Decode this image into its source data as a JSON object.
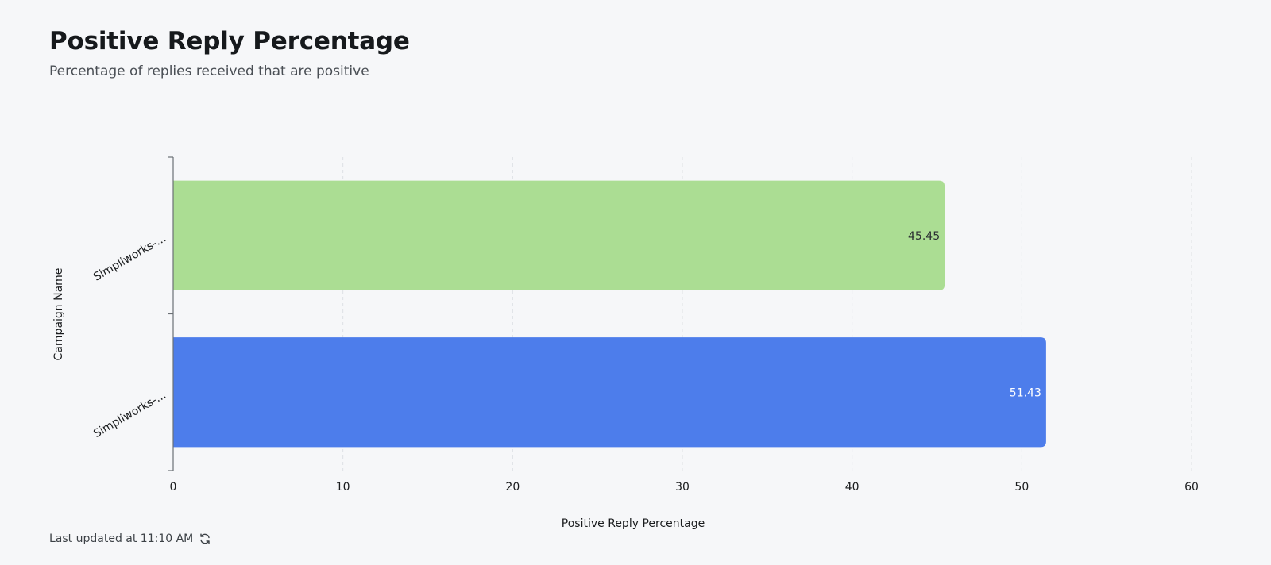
{
  "header": {
    "title": "Positive Reply Percentage",
    "subtitle": "Percentage of replies received that are positive"
  },
  "footer": {
    "last_updated": "Last updated at 11:10 AM",
    "refresh_icon": "refresh-icon"
  },
  "chart_data": {
    "type": "bar",
    "orientation": "horizontal",
    "title": "Positive Reply Percentage",
    "subtitle": "Percentage of replies received that are positive",
    "xlabel": "Positive Reply Percentage",
    "ylabel": "Campaign Name",
    "categories": [
      "Simpliworks-...",
      "Simpliworks-..."
    ],
    "values": [
      45.45,
      51.43
    ],
    "data_labels": [
      "45.45",
      "51.43"
    ],
    "colors": [
      "#abdd93",
      "#4d7deb"
    ],
    "label_colors": [
      "#2b2f33",
      "#ffffff"
    ],
    "xlim": [
      0,
      60
    ],
    "xticks": [
      0,
      10,
      20,
      30,
      40,
      50,
      60
    ],
    "xtick_labels": [
      "0",
      "10",
      "20",
      "30",
      "40",
      "50",
      "60"
    ],
    "grid": "vertical-dashed",
    "legend": "none"
  }
}
